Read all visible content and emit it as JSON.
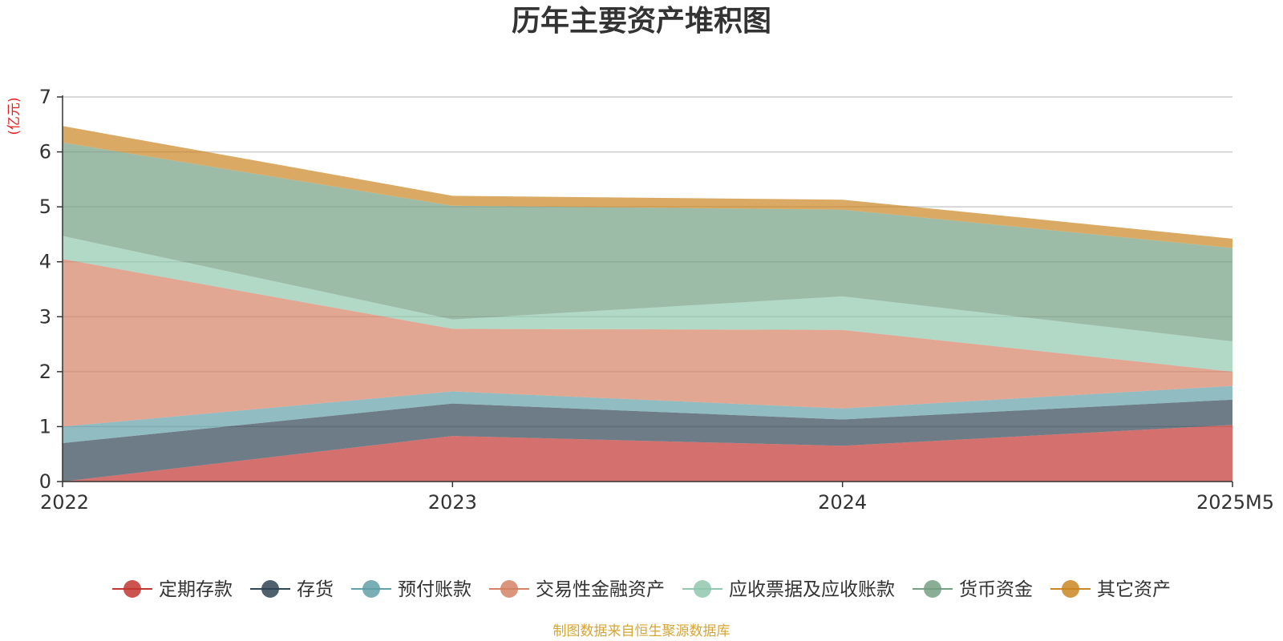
{
  "chart_data": {
    "type": "area",
    "stacked": true,
    "title": "历年主要资产堆积图",
    "unit_label": "(亿元)",
    "categories": [
      "2022",
      "2023",
      "2024",
      "2025M5"
    ],
    "ylim": [
      0,
      7
    ],
    "yticks": [
      "0",
      "1",
      "2",
      "3",
      "4",
      "5",
      "6",
      "7"
    ],
    "grid": true,
    "legend_position": "bottom",
    "series": [
      {
        "name": "定期存款",
        "color": "#c23531",
        "values": [
          0.0,
          0.83,
          0.65,
          1.03
        ]
      },
      {
        "name": "存货",
        "color": "#2f4554",
        "values": [
          0.7,
          0.59,
          0.48,
          0.46
        ]
      },
      {
        "name": "预付账款",
        "color": "#61a0a8",
        "values": [
          0.3,
          0.22,
          0.2,
          0.25
        ]
      },
      {
        "name": "交易性金融资产",
        "color": "#d48265",
        "values": [
          3.05,
          1.14,
          1.43,
          0.26
        ]
      },
      {
        "name": "应收票据及应收账款",
        "color": "#91c7ae",
        "values": [
          0.42,
          0.17,
          0.61,
          0.55
        ]
      },
      {
        "name": "货币资金",
        "color": "#749f83",
        "values": [
          1.7,
          2.07,
          1.58,
          1.7
        ]
      },
      {
        "name": "其它资产",
        "color": "#ca8622",
        "values": [
          0.3,
          0.18,
          0.18,
          0.17
        ]
      }
    ],
    "source": "制图数据来自恒生聚源数据库"
  }
}
